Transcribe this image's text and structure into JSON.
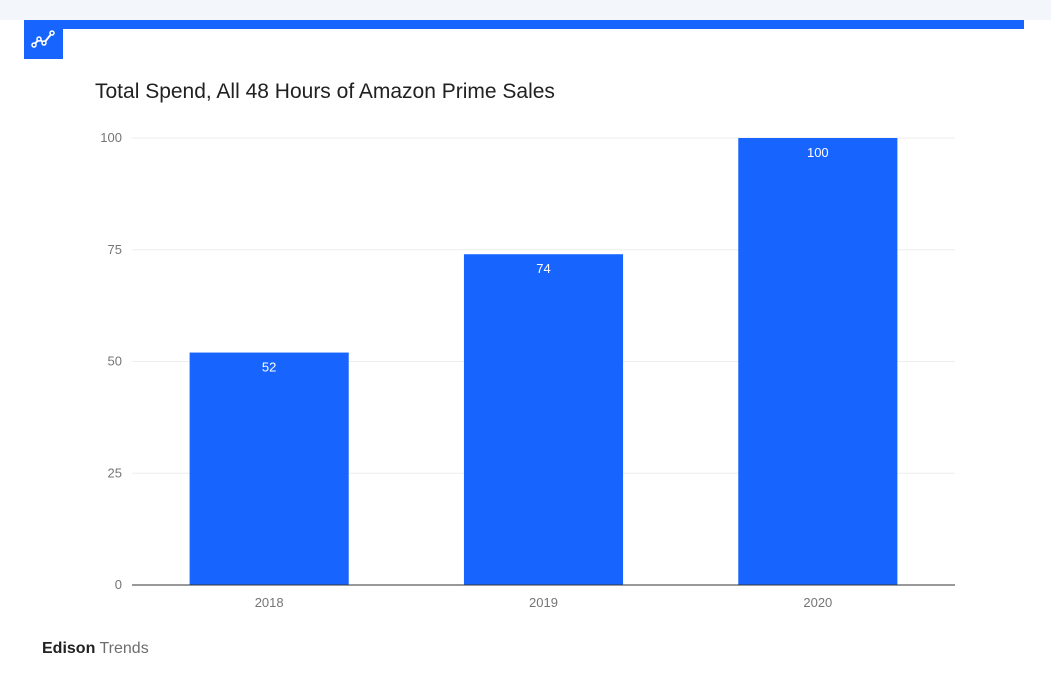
{
  "colors": {
    "accent": "#1764ff",
    "bar_label": "#ffffff",
    "tick": "#757575",
    "grid": "#eeeeee",
    "axis": "#333333"
  },
  "logo": {
    "icon": "trend-line-icon"
  },
  "footer": {
    "brand_bold": "Edison",
    "brand_light": "Trends"
  },
  "chart_data": {
    "type": "bar",
    "title": "Total Spend, All 48 Hours of Amazon Prime Sales",
    "xlabel": "",
    "ylabel": "",
    "categories": [
      "2018",
      "2019",
      "2020"
    ],
    "values": [
      52,
      74,
      100
    ],
    "data_labels": [
      "52",
      "74",
      "100"
    ],
    "yticks": [
      0,
      25,
      50,
      75,
      100
    ],
    "ytick_labels": [
      "0",
      "25",
      "50",
      "75",
      "100"
    ],
    "ylim": [
      0,
      100
    ],
    "grid": true,
    "legend": "none"
  }
}
